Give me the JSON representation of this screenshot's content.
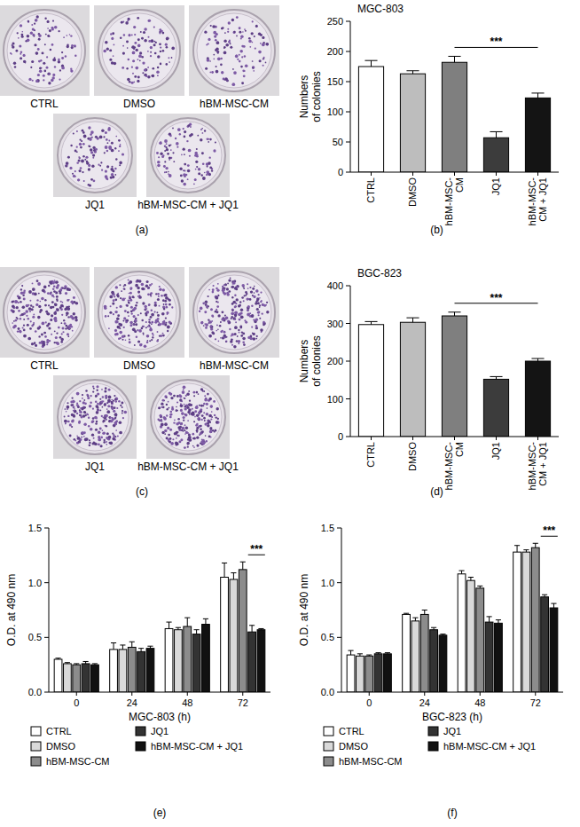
{
  "photo_panels": [
    {
      "label": "(a)",
      "captions": [
        "CTRL",
        "DMSO",
        "hBM-MSC-CM",
        "JQ1",
        "hBM-MSC-CM + JQ1"
      ]
    },
    {
      "label": "(c)",
      "captions": [
        "CTRL",
        "DMSO",
        "hBM-MSC-CM",
        "JQ1",
        "hBM-MSC-CM + JQ1"
      ]
    }
  ],
  "chart_data": [
    {
      "type": "bar",
      "panel": "(b)",
      "title": "MGC-803",
      "ylabel": [
        "Numbers",
        "of colonies"
      ],
      "categories": [
        "CTRL",
        "DMSO",
        "hBM-MSC-CM",
        "JQ1",
        "hBM-MSC-CM + JQ1"
      ],
      "values": [
        175,
        163,
        182,
        57,
        123
      ],
      "errors": [
        10,
        5,
        10,
        10,
        8
      ],
      "colors": [
        "#ffffff",
        "#bdbdbd",
        "#7f7f7f",
        "#3c3c3c",
        "#141414"
      ],
      "ylim": [
        0,
        250
      ],
      "yticks": [
        0,
        50,
        100,
        150,
        200,
        250
      ],
      "annotations": [
        {
          "text": "***",
          "from": 2,
          "to": 4
        }
      ]
    },
    {
      "type": "bar",
      "panel": "(d)",
      "title": "BGC-823",
      "ylabel": [
        "Numbers",
        "of colonies"
      ],
      "categories": [
        "CTRL",
        "DMSO",
        "hBM-MSC-CM",
        "JQ1",
        "hBM-MSC-CM + JQ1"
      ],
      "values": [
        297,
        303,
        320,
        152,
        200
      ],
      "errors": [
        8,
        12,
        10,
        7,
        7
      ],
      "colors": [
        "#ffffff",
        "#bdbdbd",
        "#7f7f7f",
        "#3c3c3c",
        "#141414"
      ],
      "ylim": [
        0,
        400
      ],
      "yticks": [
        0,
        100,
        200,
        300,
        400
      ],
      "annotations": [
        {
          "text": "***",
          "from": 2,
          "to": 4
        }
      ]
    },
    {
      "type": "grouped_bar",
      "panel": "(e)",
      "xlabel": "MGC-803 (h)",
      "ylabel": "O.D. at 490 nm",
      "categories": [
        "0",
        "24",
        "48",
        "72"
      ],
      "series": [
        {
          "name": "CTRL",
          "color": "#ffffff",
          "values": [
            0.3,
            0.39,
            0.58,
            1.05
          ],
          "errors": [
            0.01,
            0.06,
            0.06,
            0.13
          ]
        },
        {
          "name": "DMSO",
          "color": "#d9d9d9",
          "values": [
            0.26,
            0.39,
            0.57,
            1.03
          ],
          "errors": [
            0.01,
            0.04,
            0.02,
            0.06
          ]
        },
        {
          "name": "hBM-MSC-CM",
          "color": "#8c8c8c",
          "values": [
            0.25,
            0.41,
            0.6,
            1.12
          ],
          "errors": [
            0.01,
            0.05,
            0.08,
            0.07
          ]
        },
        {
          "name": "JQ1",
          "color": "#333333",
          "values": [
            0.26,
            0.37,
            0.53,
            0.55
          ],
          "errors": [
            0.02,
            0.03,
            0.04,
            0.06
          ]
        },
        {
          "name": "hBM-MSC-CM + JQ1",
          "color": "#111111",
          "values": [
            0.25,
            0.4,
            0.62,
            0.57
          ],
          "errors": [
            0.01,
            0.02,
            0.05,
            0.01
          ]
        }
      ],
      "ylim": [
        0,
        1.5
      ],
      "yticks": [
        {
          "value": 0,
          "label": "0.0"
        },
        0.5,
        {
          "value": 1,
          "label": "1.0"
        },
        1.5
      ],
      "legend": "bottom",
      "annotations": [
        {
          "text": "***",
          "category": 3,
          "from": 3,
          "to": 4
        }
      ]
    },
    {
      "type": "grouped_bar",
      "panel": "(f)",
      "xlabel": "BGC-823 (h)",
      "ylabel": "O.D. at 490 nm",
      "categories": [
        "0",
        "24",
        "48",
        "72"
      ],
      "series": [
        {
          "name": "CTRL",
          "color": "#ffffff",
          "values": [
            0.34,
            0.71,
            1.08,
            1.28
          ],
          "errors": [
            0.04,
            0.01,
            0.03,
            0.06
          ]
        },
        {
          "name": "DMSO",
          "color": "#d9d9d9",
          "values": [
            0.33,
            0.65,
            1.02,
            1.28
          ],
          "errors": [
            0.02,
            0.03,
            0.03,
            0.02
          ]
        },
        {
          "name": "hBM-MSC-CM",
          "color": "#8c8c8c",
          "values": [
            0.33,
            0.71,
            0.95,
            1.32
          ],
          "errors": [
            0.01,
            0.04,
            0.02,
            0.04
          ]
        },
        {
          "name": "JQ1",
          "color": "#333333",
          "values": [
            0.35,
            0.57,
            0.64,
            0.87
          ],
          "errors": [
            0.01,
            0.02,
            0.05,
            0.02
          ]
        },
        {
          "name": "hBM-MSC-CM + JQ1",
          "color": "#111111",
          "values": [
            0.35,
            0.52,
            0.63,
            0.77
          ],
          "errors": [
            0.01,
            0.01,
            0.03,
            0.04
          ]
        }
      ],
      "ylim": [
        0,
        1.5
      ],
      "yticks": [
        {
          "value": 0,
          "label": "0.0"
        },
        0.5,
        {
          "value": 1,
          "label": "1.0"
        },
        1.5
      ],
      "legend": "bottom",
      "annotations": [
        {
          "text": "***",
          "category": 3,
          "from": 3,
          "to": 4
        }
      ]
    }
  ]
}
